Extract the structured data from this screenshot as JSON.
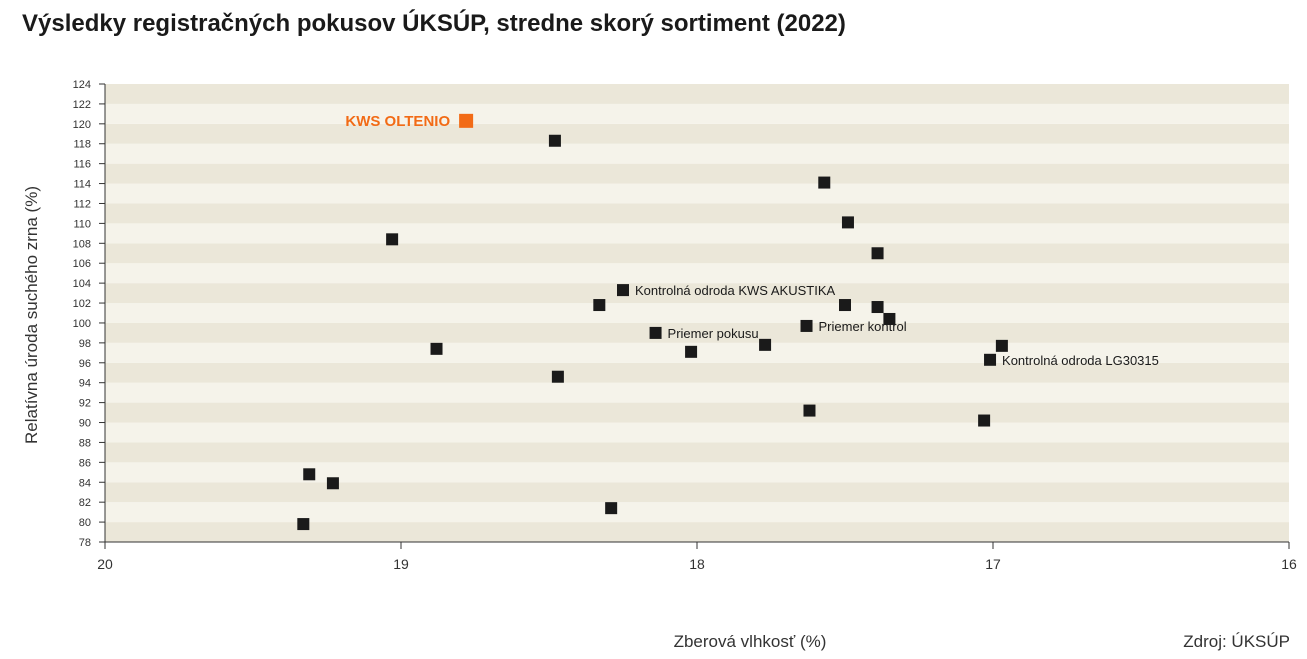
{
  "chart_data": {
    "type": "scatter",
    "title": "Výsledky registračných pokusov ÚKSÚP, stredne skorý sortiment (2022)",
    "xlabel": "Zberová vlhkosť (%)",
    "ylabel": "Relatívna úroda suchého zrna (%)",
    "source": "Zdroj: ÚKSÚP",
    "xlim": [
      20,
      16
    ],
    "x_reversed": true,
    "ylim": [
      78,
      124
    ],
    "xticks": [
      20,
      19,
      18,
      17,
      16
    ],
    "yticks": [
      78,
      80,
      82,
      84,
      86,
      88,
      90,
      92,
      94,
      96,
      98,
      100,
      102,
      104,
      106,
      108,
      110,
      112,
      114,
      116,
      118,
      120,
      122,
      124
    ],
    "grid": "horizontal bands",
    "colors": {
      "highlight": "#f26b16",
      "marker": "#1a1a1a",
      "band_light": "#f5f3ea",
      "band_dark": "#ebe7d9",
      "text": "#1a1a1a"
    },
    "highlight": {
      "x": 18.78,
      "y": 120.3,
      "label": "KWS OLTENIO"
    },
    "points": [
      {
        "x": 18.48,
        "y": 118.3
      },
      {
        "x": 19.03,
        "y": 108.4
      },
      {
        "x": 18.88,
        "y": 97.4
      },
      {
        "x": 18.47,
        "y": 94.6
      },
      {
        "x": 18.33,
        "y": 101.8
      },
      {
        "x": 18.25,
        "y": 103.3,
        "label": "Kontrolná odroda KWS AKUSTIKA"
      },
      {
        "x": 18.14,
        "y": 99.0,
        "label": "Priemer pokusu"
      },
      {
        "x": 18.02,
        "y": 97.1
      },
      {
        "x": 17.77,
        "y": 97.8
      },
      {
        "x": 17.63,
        "y": 99.7,
        "label": "Priemer kontrol"
      },
      {
        "x": 17.57,
        "y": 114.1
      },
      {
        "x": 17.49,
        "y": 110.1
      },
      {
        "x": 17.39,
        "y": 107.0
      },
      {
        "x": 17.5,
        "y": 101.8
      },
      {
        "x": 17.39,
        "y": 101.6
      },
      {
        "x": 17.35,
        "y": 100.4
      },
      {
        "x": 17.62,
        "y": 91.2
      },
      {
        "x": 16.97,
        "y": 97.7
      },
      {
        "x": 17.01,
        "y": 96.3,
        "label": "Kontrolná odroda LG30315"
      },
      {
        "x": 17.03,
        "y": 90.2
      },
      {
        "x": 19.31,
        "y": 84.8
      },
      {
        "x": 19.23,
        "y": 83.9
      },
      {
        "x": 19.33,
        "y": 79.8
      },
      {
        "x": 18.29,
        "y": 81.4
      }
    ]
  }
}
